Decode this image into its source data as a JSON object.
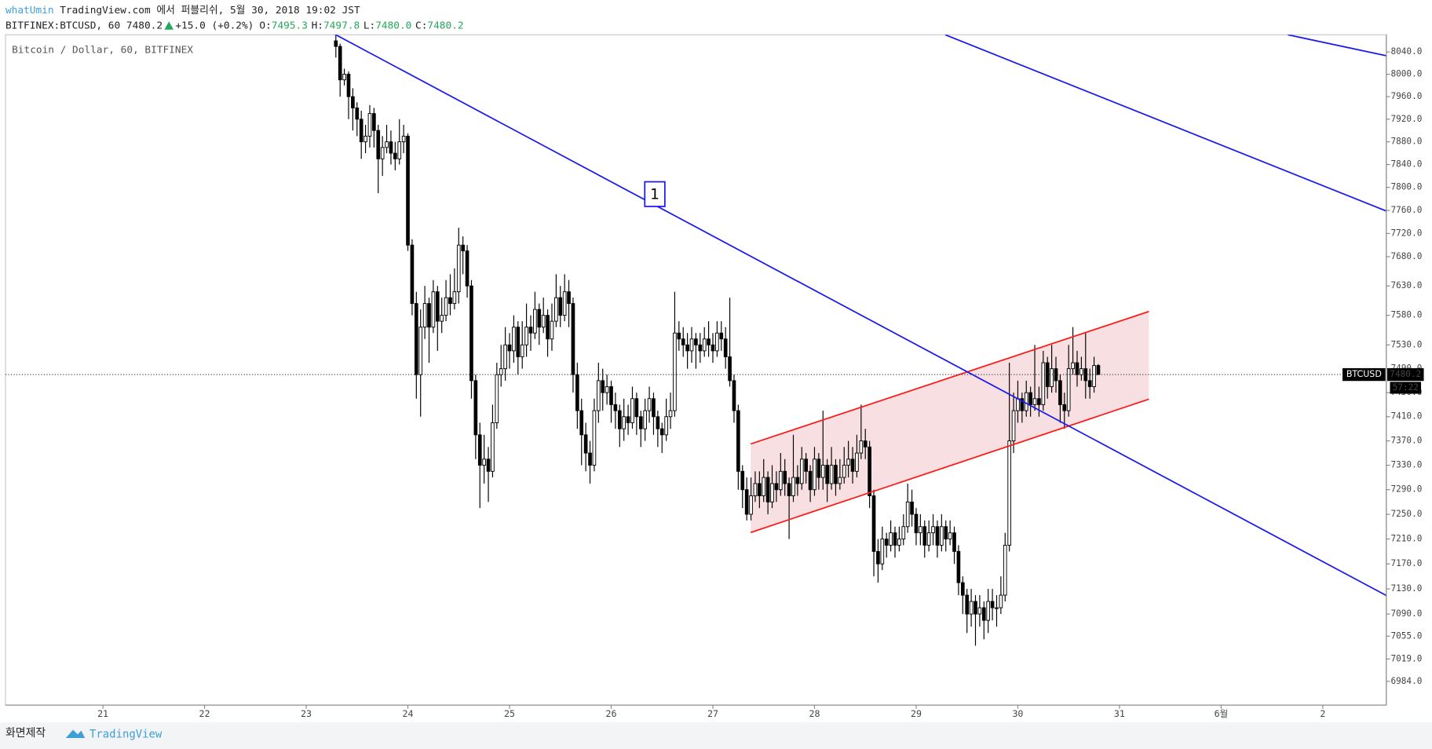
{
  "header": {
    "author": "whatUmin",
    "published": "TradingView.com 에서 퍼블리쉬, 5월 30, 2018 19:02 JST",
    "symbol": "BITFINEX:BTCUSD, 60",
    "last": "7480.2",
    "change": "+15.0 (+0.2%)",
    "ohlc": [
      {
        "label": "O:",
        "value": "7495.3"
      },
      {
        "label": "H:",
        "value": "7497.8"
      },
      {
        "label": "L:",
        "value": "7480.0"
      },
      {
        "label": "C:",
        "value": "7480.2"
      }
    ]
  },
  "footer": {
    "caption": "화면제작",
    "brand": "TradingView"
  },
  "chart_data": {
    "type": "candlestick",
    "title": "Bitcoin / Dollar, 60, BITFINEX",
    "price_tag": "BTCUSD",
    "countdown": "57:22",
    "annotation": "1",
    "log_scale": true,
    "grid": false,
    "up_color": "#ffffff",
    "down_color": "#000000",
    "border_color": "#000000",
    "xlim": [
      -23,
      303
    ],
    "xticks": [
      {
        "value": 0,
        "label": "21"
      },
      {
        "value": 24,
        "label": "22"
      },
      {
        "value": 48,
        "label": "23"
      },
      {
        "value": 72,
        "label": "24"
      },
      {
        "value": 96,
        "label": "25"
      },
      {
        "value": 120,
        "label": "26"
      },
      {
        "value": 144,
        "label": "27"
      },
      {
        "value": 168,
        "label": "28"
      },
      {
        "value": 192,
        "label": "29"
      },
      {
        "value": 216,
        "label": "30"
      },
      {
        "value": 240,
        "label": "31"
      },
      {
        "value": 264,
        "label": "6월"
      },
      {
        "value": 288,
        "label": "2"
      }
    ],
    "ylim": [
      6947,
      8071
    ],
    "yticks": [
      {
        "value": 8040,
        "label": "8040.0"
      },
      {
        "value": 8000,
        "label": "8000.0"
      },
      {
        "value": 7960,
        "label": "7960.0"
      },
      {
        "value": 7920,
        "label": "7920.0"
      },
      {
        "value": 7880,
        "label": "7880.0"
      },
      {
        "value": 7840,
        "label": "7840.0"
      },
      {
        "value": 7800,
        "label": "7800.0"
      },
      {
        "value": 7760,
        "label": "7760.0"
      },
      {
        "value": 7720,
        "label": "7720.0"
      },
      {
        "value": 7680,
        "label": "7680.0"
      },
      {
        "value": 7630,
        "label": "7630.0"
      },
      {
        "value": 7580,
        "label": "7580.0"
      },
      {
        "value": 7530,
        "label": "7530.0"
      },
      {
        "value": 7490,
        "label": "7490.0"
      },
      {
        "value": 7450,
        "label": "7450.0"
      },
      {
        "value": 7410,
        "label": "7410.0"
      },
      {
        "value": 7370,
        "label": "7370.0"
      },
      {
        "value": 7330,
        "label": "7330.0"
      },
      {
        "value": 7290,
        "label": "7290.0"
      },
      {
        "value": 7250,
        "label": "7250.0"
      },
      {
        "value": 7210,
        "label": "7210.0"
      },
      {
        "value": 7170,
        "label": "7170.0"
      },
      {
        "value": 7130,
        "label": "7130.0"
      },
      {
        "value": 7090,
        "label": "7090.0"
      },
      {
        "value": 7055,
        "label": "7055.0"
      },
      {
        "value": 7019,
        "label": "7019.0"
      },
      {
        "value": 6984,
        "label": "6984.0"
      }
    ],
    "x": [
      55,
      56,
      57,
      58,
      59,
      60,
      61,
      62,
      63,
      64,
      65,
      66,
      67,
      68,
      69,
      70,
      71,
      72,
      73,
      74,
      75,
      76,
      77,
      78,
      79,
      80,
      81,
      82,
      83,
      84,
      85,
      86,
      87,
      88,
      89,
      90,
      91,
      92,
      93,
      94,
      95,
      96,
      97,
      98,
      99,
      100,
      101,
      102,
      103,
      104,
      105,
      106,
      107,
      108,
      109,
      110,
      111,
      112,
      113,
      114,
      115,
      116,
      117,
      118,
      119,
      120,
      121,
      122,
      123,
      124,
      125,
      126,
      127,
      128,
      129,
      130,
      131,
      132,
      133,
      134,
      135,
      136,
      137,
      138,
      139,
      140,
      141,
      142,
      143,
      144,
      145,
      146,
      147,
      148,
      149,
      150,
      151,
      152,
      153,
      154,
      155,
      156,
      157,
      158,
      159,
      160,
      161,
      162,
      163,
      164,
      165,
      166,
      167,
      168,
      169,
      170,
      171,
      172,
      173,
      174,
      175,
      176,
      177,
      178,
      179,
      180,
      181,
      182,
      183,
      184,
      185,
      186,
      187,
      188,
      189,
      190,
      191,
      192,
      193,
      194,
      195,
      196,
      197,
      198,
      199,
      200,
      201,
      202,
      203,
      204,
      205,
      206,
      207,
      208,
      209,
      210,
      211,
      212,
      213,
      214,
      215,
      216,
      217,
      218,
      219,
      220,
      221,
      222,
      223,
      224,
      225,
      226,
      227,
      228,
      229,
      230,
      231,
      232,
      233,
      234,
      235
    ],
    "series": [
      {
        "name": "BITFINEX:BTCUSD, 60",
        "open": [
          8060,
          8050,
          7990,
          8000,
          7960,
          7940,
          7920,
          7880,
          7890,
          7930,
          7900,
          7850,
          7870,
          7880,
          7860,
          7850,
          7880,
          7890,
          7700,
          7600,
          7480,
          7560,
          7600,
          7560,
          7620,
          7570,
          7580,
          7610,
          7600,
          7620,
          7700,
          7690,
          7630,
          7470,
          7380,
          7330,
          7340,
          7320,
          7400,
          7480,
          7490,
          7530,
          7520,
          7560,
          7510,
          7530,
          7560,
          7550,
          7590,
          7560,
          7580,
          7540,
          7570,
          7610,
          7580,
          7620,
          7600,
          7480,
          7420,
          7380,
          7350,
          7330,
          7420,
          7470,
          7450,
          7460,
          7430,
          7420,
          7390,
          7410,
          7400,
          7440,
          7410,
          7390,
          7420,
          7440,
          7410,
          7390,
          7380,
          7410,
          7420,
          7550,
          7540,
          7530,
          7520,
          7540,
          7530,
          7520,
          7540,
          7530,
          7520,
          7550,
          7540,
          7510,
          7470,
          7420,
          7320,
          7290,
          7250,
          7280,
          7300,
          7280,
          7310,
          7270,
          7300,
          7290,
          7320,
          7300,
          7280,
          7310,
          7300,
          7340,
          7320,
          7290,
          7340,
          7310,
          7330,
          7300,
          7330,
          7300,
          7310,
          7330,
          7340,
          7320,
          7350,
          7370,
          7360,
          7280,
          7190,
          7170,
          7210,
          7200,
          7220,
          7200,
          7210,
          7230,
          7270,
          7250,
          7220,
          7230,
          7200,
          7220,
          7230,
          7200,
          7230,
          7210,
          7220,
          7190,
          7140,
          7120,
          7090,
          7110,
          7090,
          7100,
          7080,
          7110,
          7100,
          7100,
          7120,
          7200,
          7370,
          7420,
          7440,
          7420,
          7450,
          7430,
          7440,
          7430,
          7500,
          7460,
          7490,
          7470,
          7430,
          7420,
          7490,
          7500,
          7480,
          7490,
          7470,
          7460,
          7495.3
        ],
        "high": [
          8070,
          8055,
          8010,
          8005,
          7975,
          7950,
          7935,
          7910,
          7945,
          7940,
          7910,
          7890,
          7910,
          7900,
          7880,
          7920,
          7910,
          7895,
          7710,
          7620,
          7590,
          7630,
          7610,
          7640,
          7630,
          7610,
          7640,
          7650,
          7660,
          7730,
          7715,
          7700,
          7640,
          7480,
          7400,
          7380,
          7360,
          7430,
          7500,
          7530,
          7560,
          7550,
          7580,
          7570,
          7570,
          7600,
          7580,
          7620,
          7600,
          7610,
          7590,
          7600,
          7650,
          7630,
          7650,
          7640,
          7610,
          7500,
          7440,
          7400,
          7370,
          7440,
          7500,
          7490,
          7480,
          7470,
          7450,
          7430,
          7440,
          7430,
          7460,
          7450,
          7420,
          7440,
          7460,
          7450,
          7420,
          7400,
          7440,
          7450,
          7620,
          7570,
          7560,
          7550,
          7560,
          7550,
          7550,
          7560,
          7570,
          7550,
          7570,
          7570,
          7560,
          7610,
          7480,
          7430,
          7330,
          7310,
          7310,
          7320,
          7320,
          7340,
          7320,
          7330,
          7320,
          7350,
          7340,
          7310,
          7380,
          7330,
          7360,
          7350,
          7330,
          7360,
          7350,
          7420,
          7340,
          7360,
          7340,
          7340,
          7360,
          7370,
          7360,
          7380,
          7430,
          7390,
          7370,
          7290,
          7210,
          7230,
          7220,
          7240,
          7230,
          7230,
          7250,
          7300,
          7290,
          7260,
          7250,
          7240,
          7240,
          7250,
          7240,
          7250,
          7240,
          7240,
          7230,
          7200,
          7150,
          7130,
          7130,
          7120,
          7120,
          7110,
          7130,
          7130,
          7120,
          7150,
          7220,
          7500,
          7450,
          7470,
          7450,
          7470,
          7460,
          7530,
          7460,
          7520,
          7510,
          7530,
          7510,
          7480,
          7450,
          7530,
          7560,
          7520,
          7510,
          7550,
          7490,
          7510,
          7497.8
        ],
        "low": [
          8030,
          7960,
          7980,
          7920,
          7900,
          7890,
          7850,
          7860,
          7870,
          7870,
          7790,
          7820,
          7860,
          7840,
          7830,
          7840,
          7860,
          7690,
          7580,
          7440,
          7410,
          7540,
          7500,
          7550,
          7520,
          7550,
          7570,
          7580,
          7590,
          7600,
          7650,
          7610,
          7440,
          7340,
          7260,
          7300,
          7270,
          7310,
          7390,
          7460,
          7470,
          7490,
          7500,
          7480,
          7490,
          7510,
          7520,
          7540,
          7530,
          7550,
          7510,
          7520,
          7560,
          7560,
          7570,
          7560,
          7450,
          7390,
          7330,
          7320,
          7300,
          7320,
          7400,
          7420,
          7430,
          7400,
          7390,
          7360,
          7370,
          7380,
          7390,
          7380,
          7360,
          7370,
          7400,
          7380,
          7360,
          7350,
          7370,
          7390,
          7410,
          7520,
          7510,
          7490,
          7500,
          7490,
          7500,
          7510,
          7510,
          7500,
          7510,
          7520,
          7490,
          7460,
          7400,
          7290,
          7260,
          7240,
          7240,
          7270,
          7260,
          7270,
          7250,
          7260,
          7270,
          7280,
          7280,
          7210,
          7270,
          7280,
          7290,
          7300,
          7270,
          7280,
          7290,
          7290,
          7270,
          7290,
          7280,
          7290,
          7300,
          7310,
          7300,
          7310,
          7340,
          7340,
          7260,
          7150,
          7140,
          7160,
          7180,
          7190,
          7180,
          7190,
          7200,
          7220,
          7230,
          7200,
          7200,
          7180,
          7190,
          7200,
          7180,
          7190,
          7190,
          7200,
          7170,
          7120,
          7090,
          7060,
          7070,
          7040,
          7070,
          7050,
          7060,
          7080,
          7070,
          7090,
          7110,
          7190,
          7350,
          7400,
          7400,
          7410,
          7410,
          7420,
          7410,
          7420,
          7440,
          7450,
          7450,
          7400,
          7390,
          7410,
          7480,
          7460,
          7470,
          7440,
          7440,
          7450,
          7480
        ],
        "close": [
          8050,
          7990,
          8000,
          7960,
          7940,
          7920,
          7880,
          7890,
          7930,
          7900,
          7850,
          7870,
          7880,
          7860,
          7850,
          7880,
          7890,
          7700,
          7600,
          7480,
          7560,
          7600,
          7560,
          7620,
          7570,
          7580,
          7610,
          7600,
          7620,
          7700,
          7690,
          7630,
          7470,
          7380,
          7330,
          7340,
          7320,
          7400,
          7480,
          7490,
          7530,
          7520,
          7560,
          7510,
          7530,
          7560,
          7550,
          7590,
          7560,
          7580,
          7540,
          7570,
          7610,
          7580,
          7620,
          7600,
          7480,
          7420,
          7380,
          7350,
          7330,
          7420,
          7470,
          7450,
          7460,
          7430,
          7420,
          7390,
          7410,
          7400,
          7440,
          7410,
          7390,
          7420,
          7440,
          7410,
          7390,
          7380,
          7410,
          7420,
          7550,
          7540,
          7530,
          7520,
          7540,
          7530,
          7520,
          7540,
          7530,
          7520,
          7550,
          7540,
          7510,
          7470,
          7420,
          7320,
          7290,
          7250,
          7280,
          7300,
          7280,
          7310,
          7270,
          7300,
          7290,
          7320,
          7300,
          7280,
          7310,
          7300,
          7340,
          7320,
          7290,
          7340,
          7310,
          7330,
          7300,
          7330,
          7300,
          7310,
          7330,
          7340,
          7320,
          7350,
          7370,
          7360,
          7280,
          7190,
          7170,
          7210,
          7200,
          7220,
          7200,
          7210,
          7230,
          7270,
          7250,
          7220,
          7230,
          7200,
          7220,
          7230,
          7200,
          7230,
          7210,
          7220,
          7190,
          7140,
          7120,
          7090,
          7110,
          7090,
          7100,
          7080,
          7110,
          7100,
          7100,
          7120,
          7200,
          7370,
          7420,
          7440,
          7420,
          7450,
          7430,
          7440,
          7430,
          7500,
          7460,
          7490,
          7470,
          7430,
          7420,
          7490,
          7500,
          7480,
          7490,
          7470,
          7460,
          7495.3,
          7480.2
        ]
      }
    ]
  }
}
